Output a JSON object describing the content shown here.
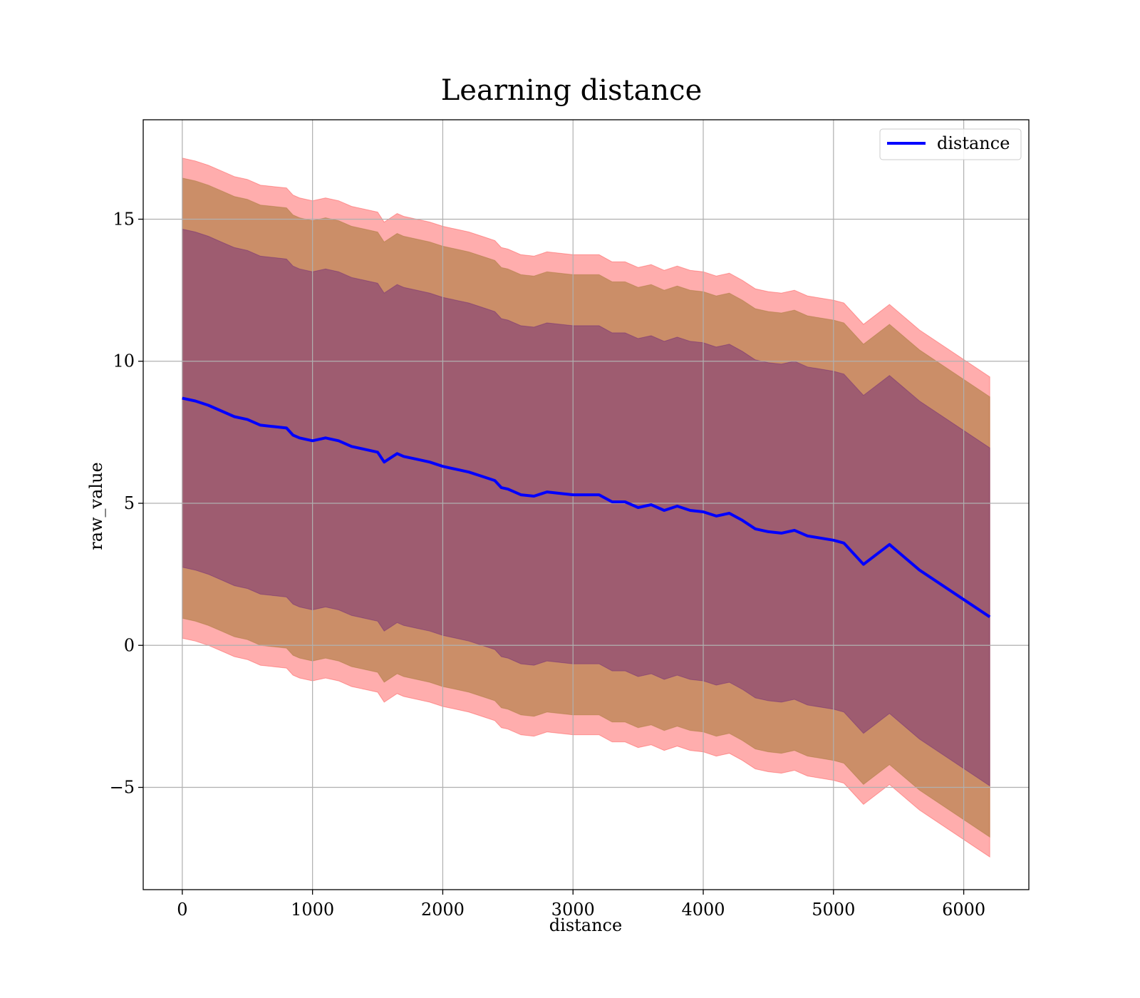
{
  "chart_data": {
    "type": "area",
    "title": "Learning distance",
    "xlabel": "distance",
    "ylabel": "raw_value",
    "xlim": [
      -300,
      6500
    ],
    "ylim": [
      -8.6,
      18.5
    ],
    "xticks": [
      0,
      1000,
      2000,
      3000,
      4000,
      5000,
      6000
    ],
    "yticks": [
      -5,
      0,
      5,
      10,
      15
    ],
    "ytick_labels": [
      "−5",
      "0",
      "5",
      "10",
      "15"
    ],
    "grid": true,
    "legend": {
      "position": "top-right",
      "entries": [
        "distance"
      ]
    },
    "colors": {
      "line": "#0000ff",
      "band_outer": "#ff0000",
      "band_middle": "#8b6914",
      "band_inner": "#4b0082"
    },
    "x": [
      0,
      100,
      200,
      300,
      400,
      500,
      600,
      700,
      800,
      850,
      900,
      1000,
      1100,
      1200,
      1300,
      1400,
      1500,
      1550,
      1600,
      1650,
      1700,
      1800,
      1900,
      2000,
      2100,
      2200,
      2300,
      2400,
      2450,
      2500,
      2600,
      2700,
      2800,
      2900,
      3000,
      3100,
      3200,
      3300,
      3400,
      3500,
      3600,
      3700,
      3800,
      3900,
      4000,
      4100,
      4200,
      4300,
      4400,
      4500,
      4600,
      4700,
      4800,
      5000,
      5080,
      5230,
      5430,
      5660,
      6200
    ],
    "series": [
      {
        "name": "distance",
        "values": [
          8.7,
          8.6,
          8.45,
          8.25,
          8.05,
          7.95,
          7.75,
          7.7,
          7.65,
          7.4,
          7.3,
          7.2,
          7.3,
          7.2,
          7.0,
          6.9,
          6.8,
          6.45,
          6.6,
          6.75,
          6.65,
          6.55,
          6.45,
          6.3,
          6.2,
          6.1,
          5.95,
          5.8,
          5.55,
          5.5,
          5.3,
          5.25,
          5.4,
          5.35,
          5.3,
          5.3,
          5.3,
          5.05,
          5.05,
          4.85,
          4.95,
          4.75,
          4.9,
          4.75,
          4.7,
          4.55,
          4.65,
          4.4,
          4.1,
          4.0,
          3.95,
          4.05,
          3.85,
          3.7,
          3.6,
          2.85,
          3.55,
          2.65,
          1.0
        ]
      }
    ],
    "bands": [
      {
        "sigma": 3,
        "upper": [
          17.15,
          17.05,
          16.9,
          16.7,
          16.5,
          16.4,
          16.2,
          16.15,
          16.1,
          15.85,
          15.75,
          15.65,
          15.75,
          15.65,
          15.45,
          15.35,
          15.25,
          14.9,
          15.05,
          15.2,
          15.1,
          15.0,
          14.9,
          14.75,
          14.65,
          14.55,
          14.4,
          14.25,
          14.0,
          13.95,
          13.75,
          13.7,
          13.85,
          13.8,
          13.75,
          13.75,
          13.75,
          13.5,
          13.5,
          13.3,
          13.4,
          13.2,
          13.35,
          13.2,
          13.15,
          13.0,
          13.1,
          12.85,
          12.55,
          12.45,
          12.4,
          12.5,
          12.3,
          12.15,
          12.05,
          11.3,
          12.0,
          11.1,
          9.45
        ],
        "lower": [
          0.25,
          0.15,
          0.0,
          -0.2,
          -0.4,
          -0.5,
          -0.7,
          -0.75,
          -0.8,
          -1.05,
          -1.15,
          -1.25,
          -1.15,
          -1.25,
          -1.45,
          -1.55,
          -1.65,
          -2.0,
          -1.85,
          -1.7,
          -1.8,
          -1.9,
          -2.0,
          -2.15,
          -2.25,
          -2.35,
          -2.5,
          -2.65,
          -2.9,
          -2.95,
          -3.15,
          -3.2,
          -3.05,
          -3.1,
          -3.15,
          -3.15,
          -3.15,
          -3.4,
          -3.4,
          -3.6,
          -3.5,
          -3.7,
          -3.55,
          -3.7,
          -3.75,
          -3.9,
          -3.8,
          -4.05,
          -4.35,
          -4.45,
          -4.5,
          -4.4,
          -4.6,
          -4.75,
          -4.85,
          -5.6,
          -4.9,
          -5.8,
          -7.45
        ]
      },
      {
        "sigma": 2,
        "upper": [
          16.45,
          16.35,
          16.2,
          16.0,
          15.8,
          15.7,
          15.5,
          15.45,
          15.4,
          15.15,
          15.05,
          14.95,
          15.05,
          14.95,
          14.75,
          14.65,
          14.55,
          14.2,
          14.35,
          14.5,
          14.4,
          14.3,
          14.2,
          14.05,
          13.95,
          13.85,
          13.7,
          13.55,
          13.3,
          13.25,
          13.05,
          13.0,
          13.15,
          13.1,
          13.05,
          13.05,
          13.05,
          12.8,
          12.8,
          12.6,
          12.7,
          12.5,
          12.65,
          12.5,
          12.45,
          12.3,
          12.4,
          12.15,
          11.85,
          11.75,
          11.7,
          11.8,
          11.6,
          11.45,
          11.35,
          10.6,
          11.3,
          10.4,
          8.75
        ],
        "lower": [
          0.95,
          0.85,
          0.7,
          0.5,
          0.3,
          0.2,
          0.0,
          -0.05,
          -0.1,
          -0.35,
          -0.45,
          -0.55,
          -0.45,
          -0.55,
          -0.75,
          -0.85,
          -0.95,
          -1.3,
          -1.15,
          -1.0,
          -1.1,
          -1.2,
          -1.3,
          -1.45,
          -1.55,
          -1.65,
          -1.8,
          -1.95,
          -2.2,
          -2.25,
          -2.45,
          -2.5,
          -2.35,
          -2.4,
          -2.45,
          -2.45,
          -2.45,
          -2.7,
          -2.7,
          -2.9,
          -2.8,
          -3.0,
          -2.85,
          -3.0,
          -3.05,
          -3.2,
          -3.1,
          -3.35,
          -3.65,
          -3.75,
          -3.8,
          -3.7,
          -3.9,
          -4.05,
          -4.15,
          -4.9,
          -4.2,
          -5.1,
          -6.75
        ]
      },
      {
        "sigma": 1,
        "upper": [
          14.65,
          14.55,
          14.4,
          14.2,
          14.0,
          13.9,
          13.7,
          13.65,
          13.6,
          13.35,
          13.25,
          13.15,
          13.25,
          13.15,
          12.95,
          12.85,
          12.75,
          12.4,
          12.55,
          12.7,
          12.6,
          12.5,
          12.4,
          12.25,
          12.15,
          12.05,
          11.9,
          11.75,
          11.5,
          11.45,
          11.25,
          11.2,
          11.35,
          11.3,
          11.25,
          11.25,
          11.25,
          11.0,
          11.0,
          10.8,
          10.9,
          10.7,
          10.85,
          10.7,
          10.65,
          10.5,
          10.6,
          10.35,
          10.05,
          9.95,
          9.9,
          10.0,
          9.8,
          9.65,
          9.55,
          8.8,
          9.5,
          8.6,
          6.95
        ],
        "lower": [
          2.75,
          2.65,
          2.5,
          2.3,
          2.1,
          2.0,
          1.8,
          1.75,
          1.7,
          1.45,
          1.35,
          1.25,
          1.35,
          1.25,
          1.05,
          0.95,
          0.85,
          0.5,
          0.65,
          0.8,
          0.7,
          0.6,
          0.5,
          0.35,
          0.25,
          0.15,
          0.0,
          -0.15,
          -0.4,
          -0.45,
          -0.65,
          -0.7,
          -0.55,
          -0.6,
          -0.65,
          -0.65,
          -0.65,
          -0.9,
          -0.9,
          -1.1,
          -1.0,
          -1.2,
          -1.05,
          -1.2,
          -1.25,
          -1.4,
          -1.3,
          -1.55,
          -1.85,
          -1.95,
          -2.0,
          -1.9,
          -2.1,
          -2.25,
          -2.35,
          -3.1,
          -2.4,
          -3.3,
          -4.95
        ]
      }
    ]
  }
}
